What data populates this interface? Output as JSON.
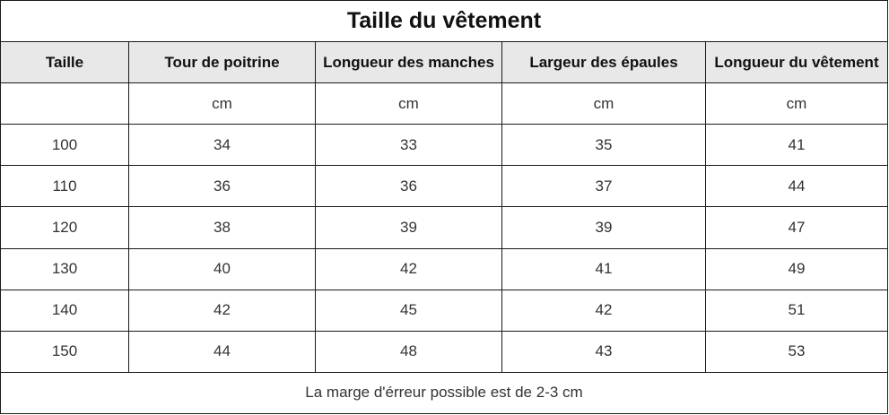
{
  "title": "Taille du vêtement",
  "columns": [
    "Taille",
    "Tour de poitrine",
    "Longueur des manches",
    "Largeur des épaules",
    "Longueur du vêtement"
  ],
  "units": [
    "",
    "cm",
    "cm",
    "cm",
    "cm"
  ],
  "rows": [
    [
      "100",
      "34",
      "33",
      "35",
      "41"
    ],
    [
      "110",
      "36",
      "36",
      "37",
      "44"
    ],
    [
      "120",
      "38",
      "39",
      "39",
      "47"
    ],
    [
      "130",
      "40",
      "42",
      "41",
      "49"
    ],
    [
      "140",
      "42",
      "45",
      "42",
      "51"
    ],
    [
      "150",
      "44",
      "48",
      "43",
      "53"
    ]
  ],
  "note": "La marge d'érreur possible est de 2-3 cm",
  "colors": {
    "header_background": "#e8e8e8",
    "border": "#1a1a1a",
    "text": "#333333"
  }
}
